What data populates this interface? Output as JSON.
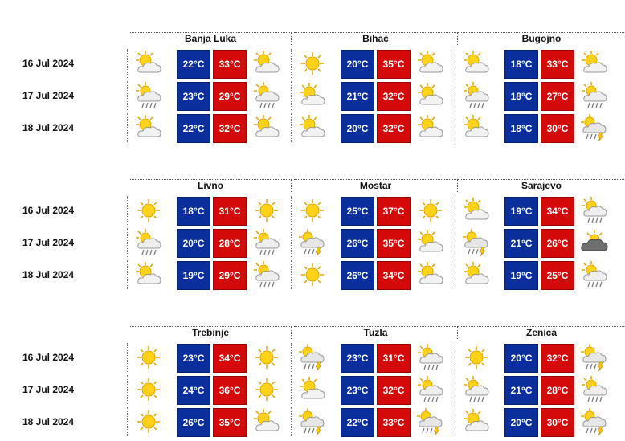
{
  "colors": {
    "min_bg": "#0a2e9c",
    "max_bg": "#d40a0a"
  },
  "groups": [
    {
      "cities": [
        {
          "name": "Banja Luka",
          "days": [
            {
              "icon_am": "sun-cloud-icon",
              "min": "22°C",
              "max": "33°C",
              "icon_pm": "sun-cloud-icon"
            },
            {
              "icon_am": "sun-cloud-rain-icon",
              "min": "23°C",
              "max": "29°C",
              "icon_pm": "sun-cloud-rain-icon"
            },
            {
              "icon_am": "sun-cloud-icon",
              "min": "22°C",
              "max": "32°C",
              "icon_pm": "sun-cloud-icon"
            }
          ]
        },
        {
          "name": "Bihać",
          "days": [
            {
              "icon_am": "sun-icon",
              "min": "20°C",
              "max": "35°C",
              "icon_pm": "sun-cloud-icon"
            },
            {
              "icon_am": "sun-cloud-icon",
              "min": "21°C",
              "max": "32°C",
              "icon_pm": "sun-cloud-icon"
            },
            {
              "icon_am": "sun-cloud-icon",
              "min": "20°C",
              "max": "32°C",
              "icon_pm": "sun-cloud-icon"
            }
          ]
        },
        {
          "name": "Bugojno",
          "days": [
            {
              "icon_am": "sun-cloud-icon",
              "min": "18°C",
              "max": "33°C",
              "icon_pm": "sun-cloud-icon"
            },
            {
              "icon_am": "sun-cloud-rain-icon",
              "min": "18°C",
              "max": "27°C",
              "icon_pm": "sun-cloud-rain-icon"
            },
            {
              "icon_am": "sun-cloud-icon",
              "min": "18°C",
              "max": "30°C",
              "icon_pm": "thunder-rain-icon"
            }
          ]
        }
      ],
      "dates": [
        "16 Jul 2024",
        "17 Jul 2024",
        "18 Jul 2024"
      ]
    },
    {
      "cities": [
        {
          "name": "Livno",
          "days": [
            {
              "icon_am": "sun-icon",
              "min": "18°C",
              "max": "31°C",
              "icon_pm": "sun-icon"
            },
            {
              "icon_am": "sun-cloud-rain-icon",
              "min": "20°C",
              "max": "28°C",
              "icon_pm": "sun-cloud-rain-icon"
            },
            {
              "icon_am": "sun-cloud-icon",
              "min": "19°C",
              "max": "29°C",
              "icon_pm": "sun-cloud-rain-icon"
            }
          ]
        },
        {
          "name": "Mostar",
          "days": [
            {
              "icon_am": "sun-icon",
              "min": "25°C",
              "max": "37°C",
              "icon_pm": "sun-icon"
            },
            {
              "icon_am": "thunder-rain-icon",
              "min": "26°C",
              "max": "35°C",
              "icon_pm": "sun-cloud-icon"
            },
            {
              "icon_am": "sun-icon",
              "min": "26°C",
              "max": "34°C",
              "icon_pm": "sun-cloud-icon"
            }
          ]
        },
        {
          "name": "Sarajevo",
          "days": [
            {
              "icon_am": "sun-cloud-icon",
              "min": "19°C",
              "max": "34°C",
              "icon_pm": "sun-cloud-rain-icon"
            },
            {
              "icon_am": "thunder-rain-icon",
              "min": "21°C",
              "max": "26°C",
              "icon_pm": "dark-cloud-icon"
            },
            {
              "icon_am": "sun-cloud-icon",
              "min": "19°C",
              "max": "25°C",
              "icon_pm": "sun-cloud-rain-icon"
            }
          ]
        }
      ],
      "dates": [
        "16 Jul 2024",
        "17 Jul 2024",
        "18 Jul 2024"
      ]
    },
    {
      "cities": [
        {
          "name": "Trebinje",
          "days": [
            {
              "icon_am": "sun-icon",
              "min": "23°C",
              "max": "34°C",
              "icon_pm": "sun-icon"
            },
            {
              "icon_am": "sun-icon",
              "min": "24°C",
              "max": "36°C",
              "icon_pm": "sun-icon"
            },
            {
              "icon_am": "sun-icon",
              "min": "26°C",
              "max": "35°C",
              "icon_pm": "sun-cloud-icon"
            }
          ]
        },
        {
          "name": "Tuzla",
          "days": [
            {
              "icon_am": "thunder-rain-icon",
              "min": "23°C",
              "max": "31°C",
              "icon_pm": "sun-cloud-rain-icon"
            },
            {
              "icon_am": "sun-cloud-icon",
              "min": "23°C",
              "max": "32°C",
              "icon_pm": "sun-cloud-rain-icon"
            },
            {
              "icon_am": "thunder-rain-icon",
              "min": "22°C",
              "max": "33°C",
              "icon_pm": "thunder-rain-icon"
            }
          ]
        },
        {
          "name": "Zenica",
          "days": [
            {
              "icon_am": "sun-icon",
              "min": "20°C",
              "max": "32°C",
              "icon_pm": "thunder-rain-icon"
            },
            {
              "icon_am": "sun-cloud-rain-icon",
              "min": "21°C",
              "max": "28°C",
              "icon_pm": "sun-cloud-rain-icon"
            },
            {
              "icon_am": "sun-cloud-icon",
              "min": "20°C",
              "max": "30°C",
              "icon_pm": "thunder-rain-icon"
            }
          ]
        }
      ],
      "dates": [
        "16 Jul 2024",
        "17 Jul 2024",
        "18 Jul 2024"
      ]
    }
  ]
}
